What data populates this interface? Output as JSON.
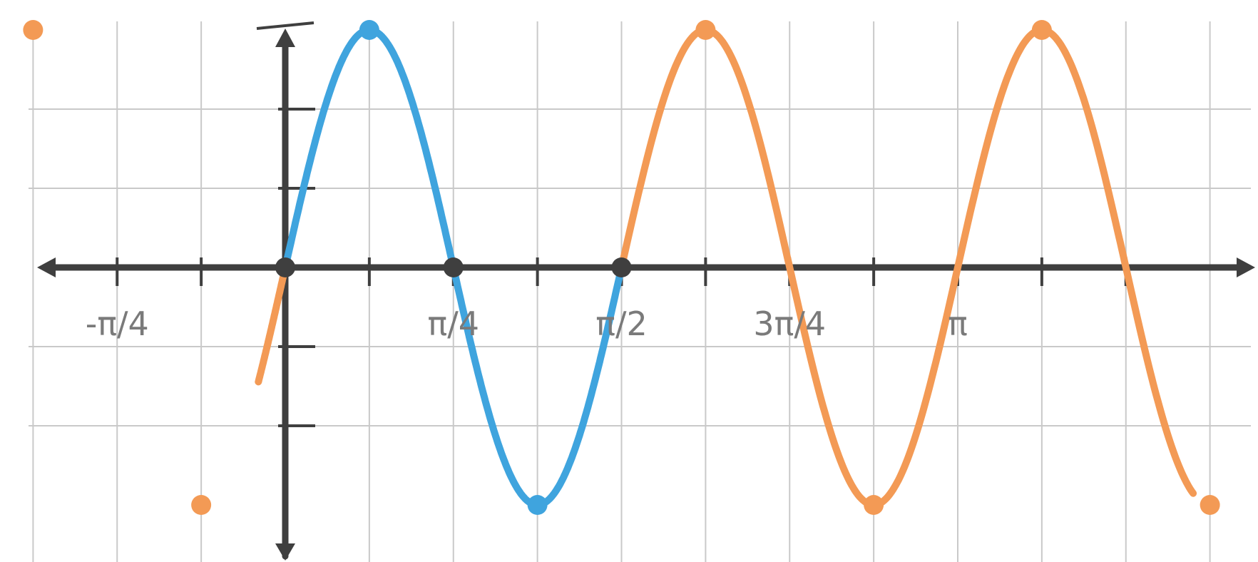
{
  "chart_data": {
    "type": "line",
    "title": "",
    "xlabel": "",
    "ylabel": "",
    "x_unit": "pi",
    "xlim": [
      -0.3,
      1.35
    ],
    "ylim": [
      -3.0,
      3.0
    ],
    "grid": true,
    "x_tick_labels": [
      {
        "x": -0.25,
        "label": "-π/4"
      },
      {
        "x": 0.25,
        "label": "π/4"
      },
      {
        "x": 0.5,
        "label": "π/2"
      },
      {
        "x": 0.75,
        "label": "3π/4"
      },
      {
        "x": 1.0,
        "label": "π"
      }
    ],
    "series": [
      {
        "role": "one-period",
        "color": "#3fa4de",
        "function": "y = 3 sin(4x)",
        "x_range": [
          0,
          0.5
        ],
        "points": [
          {
            "x": 0.0,
            "y": 0
          },
          {
            "x": 0.125,
            "y": 3
          },
          {
            "x": 0.25,
            "y": 0
          },
          {
            "x": 0.375,
            "y": -3
          },
          {
            "x": 0.5,
            "y": 0
          }
        ]
      },
      {
        "role": "extension",
        "color": "#f39a55",
        "function": "y = 3 sin(4x)",
        "x_range": [
          -0.3,
          1.35
        ],
        "points": [
          {
            "x": -0.375,
            "y": 3
          },
          {
            "x": -0.125,
            "y": -3
          },
          {
            "x": 0.625,
            "y": 3
          },
          {
            "x": 0.875,
            "y": -3
          },
          {
            "x": 1.125,
            "y": 3
          },
          {
            "x": 1.375,
            "y": -3
          }
        ]
      }
    ]
  }
}
